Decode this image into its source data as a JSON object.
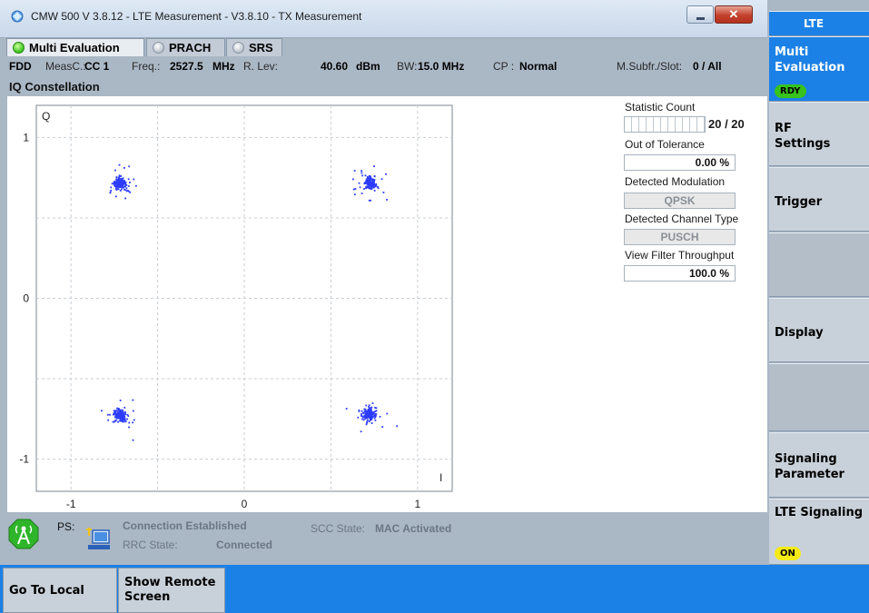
{
  "window": {
    "title": "CMW 500 V 3.8.12 - LTE Measurement  - V3.8.10 - TX Measurement",
    "close_glyph": "✕"
  },
  "tabs": [
    {
      "label": "Multi Evaluation",
      "state": "active",
      "icon": "green-led-icon"
    },
    {
      "label": "PRACH",
      "state": "inactive",
      "icon": "gray-led-icon"
    },
    {
      "label": "SRS",
      "state": "inactive",
      "icon": "gray-led-icon"
    }
  ],
  "info": {
    "duplex": "FDD",
    "measc_label": "MeasC.:",
    "measc_value": "CC 1",
    "freq_label": "Freq.:",
    "freq_value": "2527.5",
    "freq_unit": "MHz",
    "rlev_label": "R. Lev:",
    "rlev_value": "40.60",
    "rlev_unit": "dBm",
    "bw_label": "BW:",
    "bw_value": "15.0 MHz",
    "cp_label": "CP :",
    "cp_value": "Normal",
    "msubfr_label": "M.Subfr./Slot:",
    "msubfr_value": "0  / All"
  },
  "section_title": "IQ Constellation",
  "chart_data": {
    "type": "scatter",
    "title": "",
    "xlabel": "I",
    "ylabel": "Q",
    "xlim": [
      -1.2,
      1.2
    ],
    "ylim": [
      -1.2,
      1.2
    ],
    "xticks": [
      "-1",
      "0",
      "1"
    ],
    "yticks": [
      "1",
      "0",
      "-1"
    ],
    "grid": true,
    "point_color": "#2d3cff",
    "clusters": [
      {
        "name": "",
        "center": [
          -0.72,
          0.72
        ]
      },
      {
        "name": "",
        "center": [
          0.72,
          0.72
        ]
      },
      {
        "name": "",
        "center": [
          -0.72,
          -0.72
        ]
      },
      {
        "name": "",
        "center": [
          0.72,
          -0.72
        ]
      }
    ]
  },
  "results": {
    "statistic_count_label": "Statistic Count",
    "statistic_count_value": "20 / 20",
    "statistic_progress": 1.0,
    "out_of_tolerance_label": "Out of Tolerance",
    "out_of_tolerance_value": "0.00  %",
    "detected_modulation_label": "Detected Modulation",
    "detected_modulation_value": "QPSK",
    "detected_channel_label": "Detected Channel Type",
    "detected_channel_value": "PUSCH",
    "view_filter_label": "View Filter Throughput",
    "view_filter_value": "100.0  %"
  },
  "status": {
    "ps_label": "PS:",
    "connection": "Connection Established",
    "rrc_label": "RRC State:",
    "rrc_value": "Connected",
    "scc_label": "SCC State:",
    "scc_value": "MAC Activated"
  },
  "softkeys": {
    "header": "LTE",
    "multi_evaluation": "Multi Evaluation",
    "rdy": "RDY",
    "rf_settings": "RF Settings",
    "trigger": "Trigger",
    "display": "Display",
    "signaling_parameter": "Signaling Parameter",
    "lte_signaling": "LTE Signaling",
    "on": "ON"
  },
  "bottom": {
    "go_to_local": "Go To Local",
    "show_remote_screen": "Show Remote Screen"
  }
}
